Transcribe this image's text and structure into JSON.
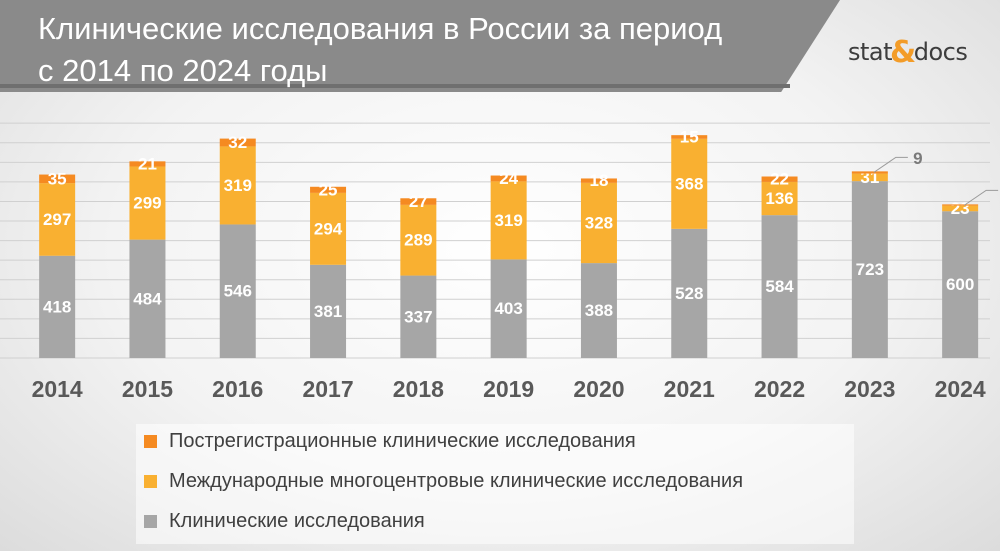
{
  "header": {
    "title_line1": "Клинические исследования в России за период",
    "title_line2": "с 2014 по 2024 годы",
    "logo_left": "stat",
    "logo_amp": "&",
    "logo_right": "docs"
  },
  "colors": {
    "clinical": "#a6a6a6",
    "international": "#f9b031",
    "post_registration": "#f58a21",
    "header_band": "#8a8a8a"
  },
  "chart_data": {
    "type": "bar",
    "stacked": true,
    "title": "Клинические исследования в России за период с 2014 по 2024 годы",
    "categories": [
      "2014",
      "2015",
      "2016",
      "2017",
      "2018",
      "2019",
      "2020",
      "2021",
      "2022",
      "2023",
      "2024"
    ],
    "series": [
      {
        "name": "Клинические исследования",
        "color": "#a6a6a6",
        "values": [
          418,
          484,
          546,
          381,
          337,
          403,
          388,
          528,
          584,
          723,
          600
        ]
      },
      {
        "name": "Международные многоцентровые клинические исследования",
        "color": "#f9b031",
        "values": [
          297,
          299,
          319,
          294,
          289,
          319,
          328,
          368,
          136,
          31,
          23
        ]
      },
      {
        "name": "Пострегистрационные клинические исследования",
        "color": "#f58a21",
        "values": [
          35,
          21,
          32,
          25,
          27,
          24,
          18,
          15,
          22,
          9,
          5
        ]
      }
    ],
    "ylim": [
      0,
      960
    ],
    "grid": true,
    "legend_position": "bottom",
    "legend_order": [
      2,
      1,
      0
    ]
  }
}
